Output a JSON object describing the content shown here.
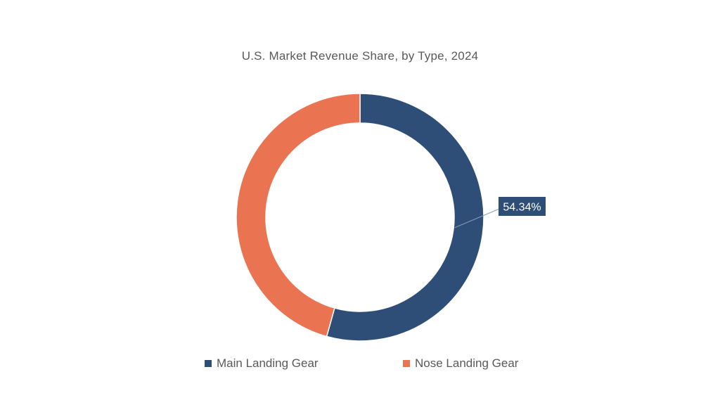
{
  "colors": {
    "main": "#2e4e78",
    "nose": "#ea7452",
    "label_bg": "#2e4e78",
    "label_text": "#ffffff",
    "text": "#595959"
  },
  "chart_data": {
    "type": "pie",
    "variant": "donut",
    "title": "U.S. Market Revenue Share, by Type, 2024",
    "legend_position": "bottom",
    "slices": [
      {
        "name": "Main Landing Gear",
        "value": 54.34,
        "label": "54.34%",
        "color": "#2e4e78"
      },
      {
        "name": "Nose Landing Gear",
        "value": 45.66,
        "label": "",
        "color": "#ea7452"
      }
    ]
  },
  "legend": {
    "items": [
      {
        "label": "Main Landing Gear"
      },
      {
        "label": "Nose Landing Gear"
      }
    ]
  }
}
